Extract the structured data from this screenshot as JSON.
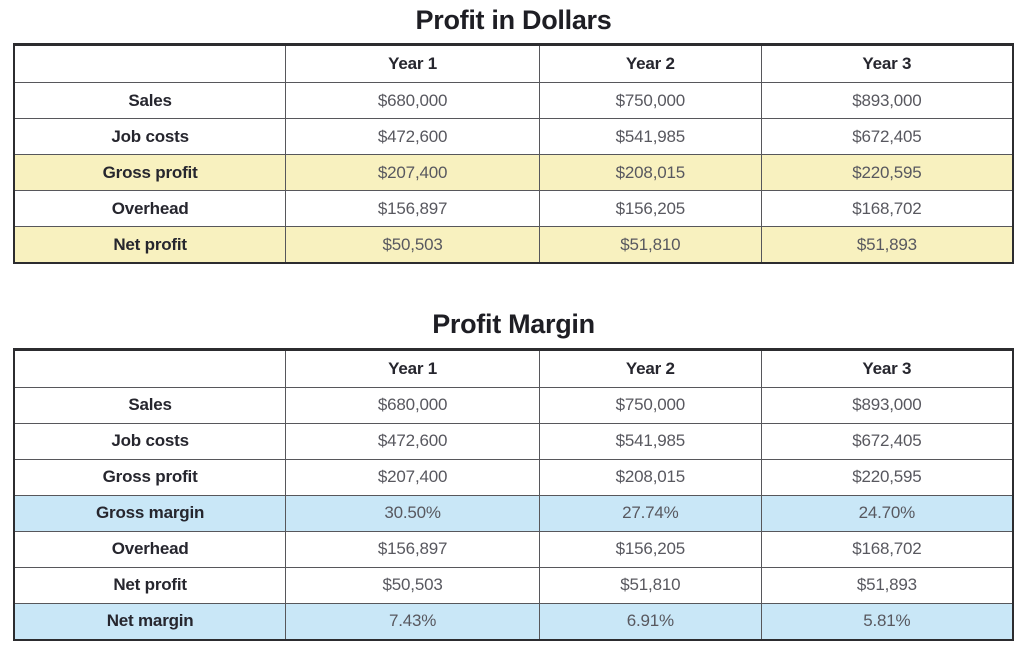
{
  "chart_data": [
    {
      "type": "table",
      "title": "Profit in Dollars",
      "columns": [
        "",
        "Year 1",
        "Year 2",
        "Year 3"
      ],
      "highlight_color": "#F8F1BF",
      "highlight_meaning": "profit rows",
      "rows": [
        {
          "label": "Sales",
          "values": [
            "$680,000",
            "$750,000",
            "$893,000"
          ],
          "highlight": false
        },
        {
          "label": "Job costs",
          "values": [
            "$472,600",
            "$541,985",
            "$672,405"
          ],
          "highlight": false
        },
        {
          "label": "Gross profit",
          "values": [
            "$207,400",
            "$208,015",
            "$220,595"
          ],
          "highlight": true
        },
        {
          "label": "Overhead",
          "values": [
            "$156,897",
            "$156,205",
            "$168,702"
          ],
          "highlight": false
        },
        {
          "label": "Net profit",
          "values": [
            "$50,503",
            "$51,810",
            "$51,893"
          ],
          "highlight": true
        }
      ]
    },
    {
      "type": "table",
      "title": "Profit Margin",
      "columns": [
        "",
        "Year 1",
        "Year 2",
        "Year 3"
      ],
      "highlight_color": "#C9E7F7",
      "highlight_meaning": "margin rows",
      "rows": [
        {
          "label": "Sales",
          "values": [
            "$680,000",
            "$750,000",
            "$893,000"
          ],
          "highlight": false
        },
        {
          "label": "Job costs",
          "values": [
            "$472,600",
            "$541,985",
            "$672,405"
          ],
          "highlight": false
        },
        {
          "label": "Gross profit",
          "values": [
            "$207,400",
            "$208,015",
            "$220,595"
          ],
          "highlight": false
        },
        {
          "label": "Gross margin",
          "values": [
            "30.50%",
            "27.74%",
            "24.70%"
          ],
          "highlight": true
        },
        {
          "label": "Overhead",
          "values": [
            "$156,897",
            "$156,205",
            "$168,702"
          ],
          "highlight": false
        },
        {
          "label": "Net profit",
          "values": [
            "$50,503",
            "$51,810",
            "$51,893"
          ],
          "highlight": false
        },
        {
          "label": "Net margin",
          "values": [
            "7.43%",
            "6.91%",
            "5.81%"
          ],
          "highlight": true
        }
      ]
    }
  ],
  "colors": {
    "yellow_highlight": "#F8F1BF",
    "blue_highlight": "#C9E7F7",
    "outer_border": "#2c2c2f",
    "grid_line": "#57575b",
    "label_text": "#26262e",
    "value_text": "#58585f",
    "background": "#ffffff"
  }
}
